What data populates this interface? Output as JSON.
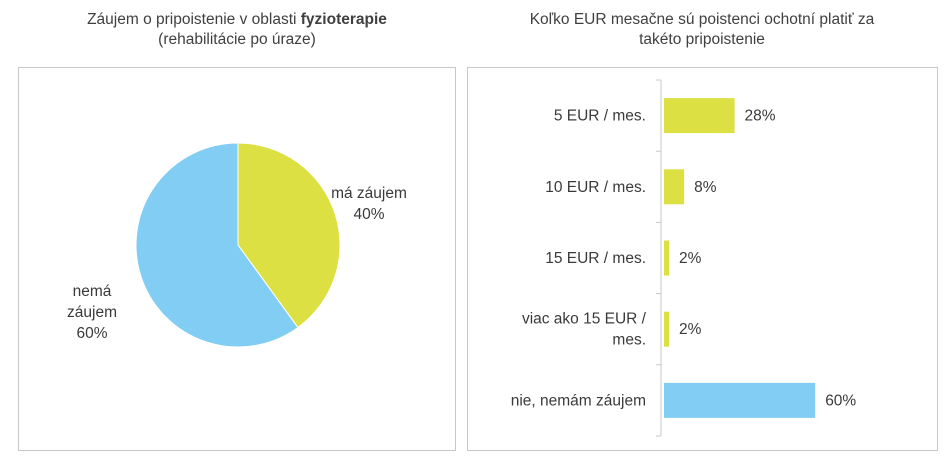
{
  "chart_data": [
    {
      "type": "pie",
      "title_plain": "Záujem o pripoistenie v oblasti ",
      "title_bold": "fyzioterapie",
      "subtitle": "(rehabilitácie po úraze)",
      "slices": [
        {
          "label_lines": [
            "má záujem"
          ],
          "value_label": "40%",
          "value": 40,
          "color": "#dde043"
        },
        {
          "label_lines": [
            "nemá",
            "záujem"
          ],
          "value_label": "60%",
          "value": 60,
          "color": "#81cdf3"
        }
      ]
    },
    {
      "type": "bar",
      "orientation": "horizontal",
      "title_line1": "Koľko EUR mesačne sú poistenci ochotní platiť za",
      "title_line2": "takéto pripoistenie",
      "xlim": [
        0,
        100
      ],
      "categories": [
        {
          "label_lines": [
            "5 EUR / mes."
          ],
          "value": 28,
          "value_label": "28%",
          "color": "#dde043"
        },
        {
          "label_lines": [
            "10 EUR / mes."
          ],
          "value": 8,
          "value_label": "8%",
          "color": "#dde043"
        },
        {
          "label_lines": [
            "15 EUR / mes."
          ],
          "value": 2,
          "value_label": "2%",
          "color": "#dde043"
        },
        {
          "label_lines": [
            "viac ako 15 EUR /",
            "mes."
          ],
          "value": 2,
          "value_label": "2%",
          "color": "#dde043"
        },
        {
          "label_lines": [
            "nie, nemám záujem"
          ],
          "value": 60,
          "value_label": "60%",
          "color": "#81cdf3"
        }
      ]
    }
  ]
}
